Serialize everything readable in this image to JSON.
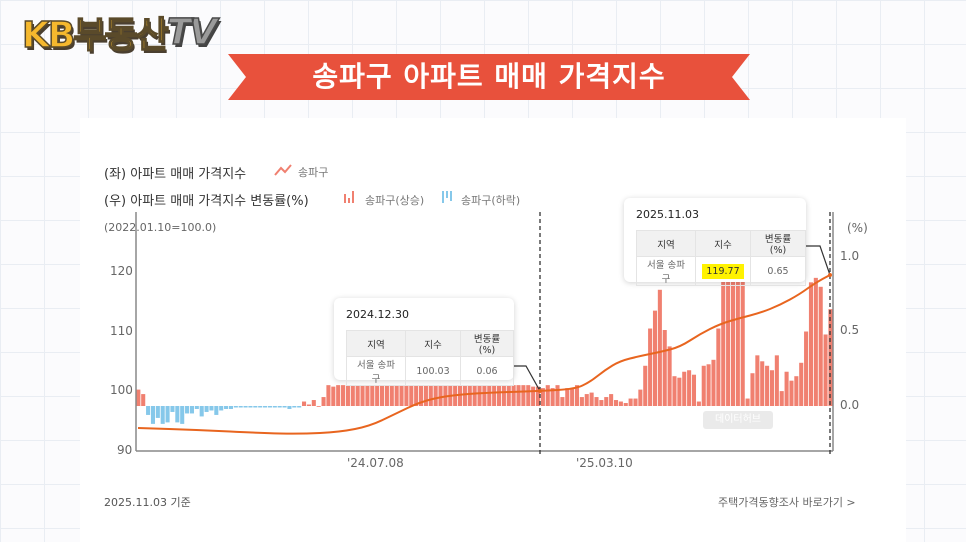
{
  "logo": {
    "kb": "KB부동산",
    "tv": "TV"
  },
  "banner": {
    "title": "송파구 아파트 매매 가격지수",
    "color": "#e8513c"
  },
  "legend": {
    "left_title": "(좌) 아파트 매매 가격지수",
    "left_series": "송파구",
    "right_title": "(우) 아파트 매매 가격지수 변동률(%)",
    "rise_label": "송파구(상승)",
    "fall_label": "송파구(하락)",
    "base_note": "(2022.01.10=100.0)"
  },
  "tooltips": [
    {
      "date": "2024.12.30",
      "headers": [
        "지역",
        "지수",
        "변동률(%)"
      ],
      "region": "서울 송파구",
      "index": "100.03",
      "change": "0.06"
    },
    {
      "date": "2025.11.03",
      "headers": [
        "지역",
        "지수",
        "변동률(%)"
      ],
      "region": "서울 송파구",
      "index": "119.77",
      "change": "0.65"
    }
  ],
  "footer": {
    "as_of": "2025.11.03 기준",
    "link": "주택가격동향조사 바로가기 >"
  },
  "watermark": "데이터허브",
  "colors": {
    "line": "#e8651f",
    "rise": "#f08070",
    "fall": "#86c8ea",
    "banner": "#e8513c",
    "highlight": "#fff200"
  },
  "chart_data": {
    "type": "bar+line",
    "title": "송파구 아파트 매매 가격지수",
    "left_axis": {
      "label": "(2022.01.10=100.0)",
      "ticks": [
        90,
        100,
        110,
        120
      ],
      "range": [
        90,
        123
      ]
    },
    "right_axis": {
      "label": "(%)",
      "ticks": [
        0.0,
        0.5,
        1.0
      ],
      "range": [
        -0.3,
        1.1
      ]
    },
    "x_ticks": [
      "'24.07.08",
      "'25.03.10"
    ],
    "x_range": [
      "2022.01.10",
      "2025.11.03"
    ],
    "markers": [
      "2024.12.30",
      "2025.11.03"
    ],
    "series": [
      {
        "name": "송파구 지수",
        "type": "line",
        "axis": "left",
        "points": [
          {
            "x": "2022.01",
            "y": 93.9
          },
          {
            "x": "2022.07",
            "y": 93.4
          },
          {
            "x": "2023.01",
            "y": 93.0
          },
          {
            "x": "2023.07",
            "y": 92.9
          },
          {
            "x": "2024.01",
            "y": 93.0
          },
          {
            "x": "2024.04",
            "y": 94.0
          },
          {
            "x": "2024.07",
            "y": 96.5
          },
          {
            "x": "2024.09",
            "y": 98.5
          },
          {
            "x": "2024.12",
            "y": 100.03
          },
          {
            "x": "2025.02",
            "y": 100.4
          },
          {
            "x": "2025.04",
            "y": 103.5
          },
          {
            "x": "2025.06",
            "y": 106.5
          },
          {
            "x": "2025.08",
            "y": 112.0
          },
          {
            "x": "2025.10",
            "y": 115.5
          },
          {
            "x": "2025.11",
            "y": 119.77
          }
        ]
      },
      {
        "name": "송파구(상승)/(하락) 변동률",
        "type": "bar",
        "axis": "right",
        "values": [
          0.11,
          0.08,
          -0.06,
          -0.12,
          -0.08,
          -0.12,
          -0.11,
          -0.04,
          -0.11,
          -0.12,
          -0.05,
          -0.05,
          -0.02,
          -0.07,
          -0.04,
          -0.03,
          -0.06,
          -0.03,
          -0.02,
          -0.02,
          -0.01,
          -0.01,
          -0.01,
          -0.01,
          -0.01,
          -0.01,
          -0.01,
          -0.01,
          -0.01,
          -0.01,
          -0.01,
          -0.02,
          -0.01,
          -0.01,
          0.03,
          0.01,
          0.04,
          0.0,
          0.06,
          0.14,
          0.13,
          0.14,
          0.14,
          0.14,
          0.14,
          0.14,
          0.14,
          0.14,
          0.14,
          0.14,
          0.14,
          0.14,
          0.14,
          0.14,
          0.14,
          0.14,
          0.14,
          0.14,
          0.14,
          0.14,
          0.14,
          0.14,
          0.14,
          0.14,
          0.14,
          0.14,
          0.14,
          0.14,
          0.14,
          0.14,
          0.14,
          0.14,
          0.14,
          0.14,
          0.14,
          0.14,
          0.14,
          0.14,
          0.14,
          0.14,
          0.14,
          0.13,
          0.13,
          0.12,
          0.14,
          0.12,
          0.14,
          0.06,
          0.12,
          0.12,
          0.14,
          0.06,
          0.08,
          0.09,
          0.06,
          0.04,
          0.06,
          0.08,
          0.04,
          0.03,
          0.02,
          0.05,
          0.05,
          0.11,
          0.27,
          0.52,
          0.64,
          0.78,
          0.51,
          0.4,
          0.2,
          0.19,
          0.23,
          0.24,
          0.21,
          0.03,
          0.27,
          0.28,
          0.31,
          0.52,
          0.86,
          0.88,
          0.88,
          0.88,
          0.88,
          0.05,
          0.22,
          0.34,
          0.3,
          0.27,
          0.24,
          0.34,
          0.1,
          0.23,
          0.17,
          0.2,
          0.29,
          0.5,
          0.83,
          0.86,
          0.8,
          0.48,
          0.65
        ]
      }
    ],
    "annotations": [
      {
        "date": "2024.12.30",
        "index": 100.03,
        "change": 0.06
      },
      {
        "date": "2025.11.03",
        "index": 119.77,
        "change": 0.65
      }
    ]
  }
}
